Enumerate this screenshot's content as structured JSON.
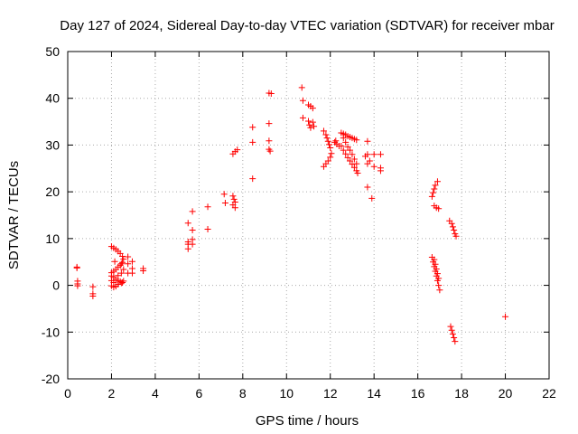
{
  "chart_data": {
    "type": "scatter",
    "title": "Day 127 of 2024, Sidereal Day-to-day VTEC variation (SDTVAR) for receiver mbar",
    "xlabel": "GPS time / hours",
    "ylabel": "SDTVAR / TECUs",
    "xlim": [
      0,
      22
    ],
    "ylim": [
      -20,
      50
    ],
    "xticks": [
      0,
      2,
      4,
      6,
      8,
      10,
      12,
      14,
      16,
      18,
      20,
      22
    ],
    "yticks": [
      -20,
      -10,
      0,
      10,
      20,
      30,
      40,
      50
    ],
    "grid": true,
    "marker": "+",
    "color": "#ff0000",
    "series": [
      {
        "name": "SDTVAR",
        "points": [
          [
            0.42,
            3.9
          ],
          [
            0.42,
            3.7
          ],
          [
            0.45,
            0.9
          ],
          [
            0.45,
            0.3
          ],
          [
            0.45,
            -0.1
          ],
          [
            1.15,
            -0.3
          ],
          [
            1.15,
            -1.8
          ],
          [
            1.15,
            -2.3
          ],
          [
            2.0,
            8.3
          ],
          [
            2.1,
            8.0
          ],
          [
            2.2,
            7.7
          ],
          [
            2.3,
            7.3
          ],
          [
            2.4,
            6.8
          ],
          [
            2.5,
            6.2
          ],
          [
            2.55,
            5.6
          ],
          [
            2.5,
            4.9
          ],
          [
            2.4,
            4.3
          ],
          [
            2.3,
            3.9
          ],
          [
            2.2,
            3.4
          ],
          [
            2.1,
            3.0
          ],
          [
            2.0,
            2.7
          ],
          [
            2.0,
            2.0
          ],
          [
            2.1,
            1.7
          ],
          [
            2.2,
            1.3
          ],
          [
            2.3,
            1.0
          ],
          [
            2.4,
            0.8
          ],
          [
            2.5,
            0.6
          ],
          [
            2.55,
            0.9
          ],
          [
            2.0,
            1.0
          ],
          [
            2.1,
            0.6
          ],
          [
            2.0,
            -0.1
          ],
          [
            2.1,
            -0.4
          ],
          [
            2.2,
            -0.2
          ],
          [
            2.3,
            0.2
          ],
          [
            2.45,
            0.5
          ],
          [
            2.3,
            2.1
          ],
          [
            2.45,
            2.6
          ],
          [
            2.55,
            3.4
          ],
          [
            2.45,
            4.6
          ],
          [
            2.15,
            5.1
          ],
          [
            2.75,
            6.1
          ],
          [
            2.75,
            4.6
          ],
          [
            2.75,
            2.6
          ],
          [
            2.95,
            5.1
          ],
          [
            2.95,
            3.6
          ],
          [
            2.95,
            2.6
          ],
          [
            3.45,
            3.6
          ],
          [
            3.45,
            3.1
          ],
          [
            5.5,
            13.3
          ],
          [
            5.5,
            9.3
          ],
          [
            5.5,
            8.8
          ],
          [
            5.5,
            7.8
          ],
          [
            5.7,
            15.8
          ],
          [
            5.7,
            11.8
          ],
          [
            5.7,
            9.8
          ],
          [
            5.7,
            8.8
          ],
          [
            6.4,
            16.8
          ],
          [
            6.4,
            12.0
          ],
          [
            7.15,
            19.5
          ],
          [
            7.2,
            17.6
          ],
          [
            7.55,
            19.1
          ],
          [
            7.6,
            18.4
          ],
          [
            7.65,
            17.8
          ],
          [
            7.55,
            17.2
          ],
          [
            7.65,
            16.6
          ],
          [
            7.55,
            28.1
          ],
          [
            7.65,
            28.6
          ],
          [
            7.75,
            29.0
          ],
          [
            8.45,
            33.8
          ],
          [
            8.45,
            30.6
          ],
          [
            8.45,
            22.8
          ],
          [
            9.2,
            41.1
          ],
          [
            9.3,
            41.0
          ],
          [
            9.2,
            34.6
          ],
          [
            9.2,
            30.9
          ],
          [
            9.2,
            29.1
          ],
          [
            9.25,
            28.7
          ],
          [
            10.7,
            42.3
          ],
          [
            10.75,
            39.5
          ],
          [
            10.75,
            35.8
          ],
          [
            11.0,
            38.6
          ],
          [
            11.1,
            38.3
          ],
          [
            11.2,
            37.9
          ],
          [
            11.0,
            35.1
          ],
          [
            11.05,
            34.3
          ],
          [
            11.1,
            33.7
          ],
          [
            11.2,
            34.9
          ],
          [
            11.25,
            34.0
          ],
          [
            11.7,
            33.0
          ],
          [
            11.8,
            32.2
          ],
          [
            11.85,
            31.5
          ],
          [
            11.9,
            30.8
          ],
          [
            11.95,
            30.1
          ],
          [
            12.0,
            29.4
          ],
          [
            11.7,
            25.4
          ],
          [
            11.8,
            26.0
          ],
          [
            11.9,
            26.6
          ],
          [
            12.0,
            27.4
          ],
          [
            12.05,
            28.2
          ],
          [
            12.2,
            30.6
          ],
          [
            12.3,
            30.2
          ],
          [
            12.4,
            29.8
          ],
          [
            12.25,
            30.9
          ],
          [
            12.5,
            32.6
          ],
          [
            12.6,
            32.4
          ],
          [
            12.7,
            32.2
          ],
          [
            12.8,
            31.9
          ],
          [
            12.9,
            31.7
          ],
          [
            13.0,
            31.5
          ],
          [
            13.1,
            31.3
          ],
          [
            13.2,
            31.1
          ],
          [
            12.5,
            29.8
          ],
          [
            12.6,
            28.9
          ],
          [
            12.7,
            28.1
          ],
          [
            12.8,
            27.3
          ],
          [
            12.9,
            26.6
          ],
          [
            13.0,
            25.9
          ],
          [
            13.1,
            25.2
          ],
          [
            13.2,
            24.5
          ],
          [
            13.25,
            24.0
          ],
          [
            12.6,
            31.5
          ],
          [
            12.7,
            30.6
          ],
          [
            12.8,
            29.6
          ],
          [
            12.9,
            28.9
          ],
          [
            13.0,
            28.0
          ],
          [
            13.1,
            27.0
          ],
          [
            13.2,
            26.0
          ],
          [
            13.7,
            30.8
          ],
          [
            13.7,
            28.0
          ],
          [
            13.6,
            27.6
          ],
          [
            13.7,
            26.0
          ],
          [
            13.8,
            26.6
          ],
          [
            13.7,
            21.0
          ],
          [
            13.9,
            18.6
          ],
          [
            14.0,
            28.0
          ],
          [
            14.0,
            25.4
          ],
          [
            14.3,
            28.0
          ],
          [
            14.3,
            25.1
          ],
          [
            14.3,
            24.5
          ],
          [
            16.65,
            19.0
          ],
          [
            16.7,
            19.8
          ],
          [
            16.75,
            20.6
          ],
          [
            16.8,
            21.4
          ],
          [
            16.9,
            22.2
          ],
          [
            16.75,
            17.0
          ],
          [
            16.85,
            16.6
          ],
          [
            16.95,
            16.4
          ],
          [
            16.65,
            6.0
          ],
          [
            16.7,
            5.0
          ],
          [
            16.75,
            4.0
          ],
          [
            16.8,
            3.0
          ],
          [
            16.85,
            2.0
          ],
          [
            16.9,
            1.0
          ],
          [
            16.95,
            0.0
          ],
          [
            17.0,
            -1.0
          ],
          [
            16.75,
            5.5
          ],
          [
            16.8,
            4.5
          ],
          [
            16.85,
            3.5
          ],
          [
            16.9,
            2.5
          ],
          [
            16.95,
            1.5
          ],
          [
            17.45,
            13.8
          ],
          [
            17.55,
            13.2
          ],
          [
            17.6,
            12.5
          ],
          [
            17.65,
            11.8
          ],
          [
            17.7,
            11.0
          ],
          [
            17.75,
            10.5
          ],
          [
            17.5,
            -8.8
          ],
          [
            17.55,
            -9.6
          ],
          [
            17.6,
            -10.4
          ],
          [
            17.65,
            -11.2
          ],
          [
            17.7,
            -12.0
          ],
          [
            20.0,
            -6.7
          ]
        ]
      }
    ]
  }
}
